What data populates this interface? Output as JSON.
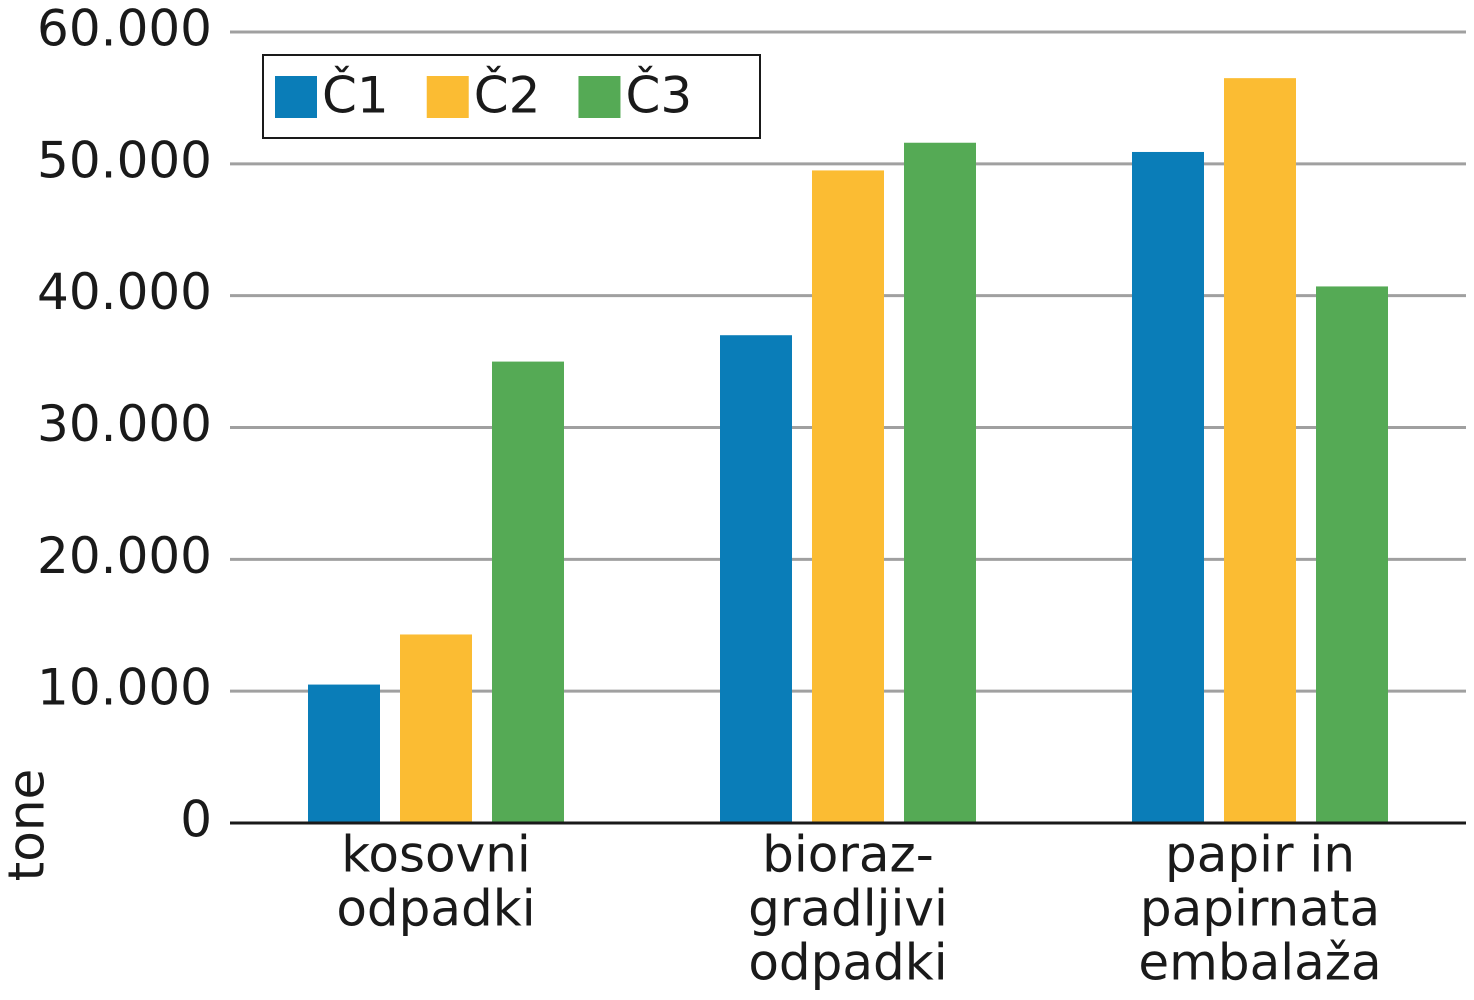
{
  "chart_data": {
    "type": "bar",
    "y_label": "tone",
    "categories": [
      [
        "kosovni",
        "odpadki"
      ],
      [
        "bioraz-",
        "gradljivi",
        "odpadki"
      ],
      [
        "papir in",
        "papirnata",
        "embalaža"
      ]
    ],
    "series": [
      {
        "name": "Č1",
        "color": "#0a7db8",
        "values": [
          10500,
          37000,
          50900
        ]
      },
      {
        "name": "Č2",
        "color": "#fbbc33",
        "values": [
          14300,
          49500,
          56500
        ]
      },
      {
        "name": "Č3",
        "color": "#55aa55",
        "values": [
          35000,
          51600,
          40700
        ]
      }
    ],
    "ylim": [
      0,
      60000
    ],
    "yticks": [
      0,
      {
        "value": 10000,
        "label": "10.000"
      },
      {
        "value": 20000,
        "label": "20.000"
      },
      {
        "value": 30000,
        "label": "30.000"
      },
      {
        "value": 40000,
        "label": "40.000"
      },
      {
        "value": 50000,
        "label": "50.000"
      },
      {
        "value": 60000,
        "label": "60.000"
      }
    ],
    "grid": true,
    "legend": "top-left"
  }
}
